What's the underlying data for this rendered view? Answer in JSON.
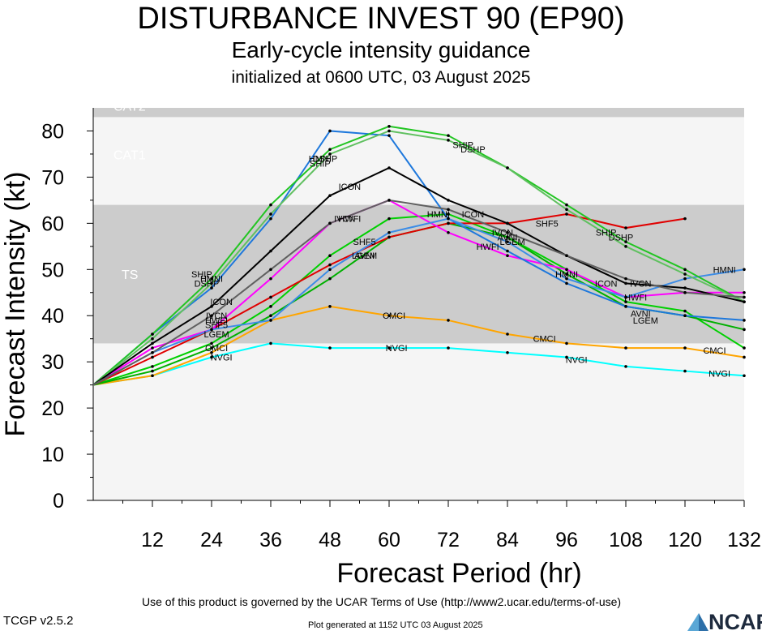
{
  "header": {
    "title": "DISTURBANCE INVEST 90 (EP90)",
    "subtitle": "Early-cycle intensity guidance",
    "initialized": "initialized at 0600 UTC, 03 August 2025"
  },
  "footer": {
    "terms": "Use of this product is governed by the UCAR Terms of Use (http://www2.ucar.edu/terms-of-use)",
    "version": "TCGP v2.5.2",
    "generated": "Plot generated at 1152 UTC   03 August 2025",
    "logo": "NCAR"
  },
  "chart_data": {
    "type": "line",
    "xlabel": "Forecast Period (hr)",
    "ylabel": "Forecast Intensity (kt)",
    "xlim": [
      0,
      132
    ],
    "ylim": [
      0,
      85
    ],
    "xticks": [
      12,
      24,
      36,
      48,
      60,
      72,
      84,
      96,
      108,
      120,
      132
    ],
    "yticks": [
      0,
      10,
      20,
      30,
      40,
      50,
      60,
      70,
      80
    ],
    "bands": [
      {
        "label": "TS",
        "from": 34,
        "to": 64,
        "color": "#cccccc"
      },
      {
        "label": "CAT1",
        "from": 64,
        "to": 83,
        "color": "#f5f5f5"
      },
      {
        "label": "CAT2",
        "from": 83,
        "to": 96,
        "color": "#cccccc"
      }
    ],
    "below_band_color": "#f5f5f5",
    "series": [
      {
        "name": "NVGI",
        "color": "#00ffff",
        "x": [
          0,
          12,
          24,
          36,
          48,
          60,
          72,
          84,
          96,
          108,
          120,
          132
        ],
        "values": [
          25,
          27,
          31,
          34,
          33,
          33,
          33,
          32,
          31,
          29,
          28,
          27
        ]
      },
      {
        "name": "CMCI",
        "color": "#ffa500",
        "x": [
          0,
          12,
          24,
          36,
          48,
          60,
          72,
          84,
          96,
          108,
          120,
          132
        ],
        "values": [
          25,
          27,
          32,
          39,
          42,
          40,
          39,
          36,
          34,
          33,
          33,
          31
        ]
      },
      {
        "name": "AVNI",
        "color": "#00d000",
        "x": [
          0,
          12,
          24,
          36,
          48,
          60,
          72,
          84,
          96,
          108,
          120,
          132
        ],
        "values": [
          25,
          29,
          34,
          42,
          53,
          61,
          62,
          57,
          50,
          43,
          41,
          33
        ]
      },
      {
        "name": "LGEM",
        "color": "#00b000",
        "x": [
          0,
          12,
          24,
          36,
          48,
          60,
          72,
          84,
          96,
          108,
          120,
          132
        ],
        "values": [
          25,
          28,
          33,
          40,
          48,
          57,
          60,
          57,
          49,
          42,
          40,
          37
        ]
      },
      {
        "name": "SHF5",
        "color": "#e00000",
        "x": [
          0,
          12,
          24,
          36,
          48,
          60,
          72,
          84,
          96,
          108,
          120
        ],
        "values": [
          25,
          31,
          37,
          44,
          51,
          57,
          60,
          60,
          62,
          59,
          61
        ]
      },
      {
        "name": "HWFI",
        "color": "#ff00ff",
        "x": [
          0,
          12,
          24,
          36,
          48,
          60,
          72,
          84,
          96,
          108,
          120,
          132
        ],
        "values": [
          25,
          33,
          37,
          48,
          60,
          65,
          58,
          53,
          50,
          44,
          45,
          45
        ]
      },
      {
        "name": "HMNI",
        "color": "#1e78dc",
        "x": [
          0,
          12,
          24,
          36,
          48,
          60,
          72,
          84,
          96,
          108,
          120,
          132
        ],
        "values": [
          25,
          36,
          46,
          61,
          80,
          79,
          61,
          54,
          47,
          42,
          40,
          39
        ]
      },
      {
        "name": "HMNI",
        "color": "#3c8ce6",
        "x": [
          0,
          12,
          24,
          36,
          48,
          60,
          72,
          84,
          96,
          108,
          120,
          132
        ],
        "values": [
          25,
          32,
          37,
          39,
          50,
          58,
          61,
          56,
          48,
          44,
          48,
          50
        ]
      },
      {
        "name": "SHIP",
        "color": "#22c522",
        "x": [
          0,
          12,
          24,
          36,
          48,
          60,
          72,
          84,
          96,
          108,
          120,
          132
        ],
        "values": [
          25,
          36,
          48,
          64,
          76,
          81,
          79,
          72,
          64,
          56,
          50,
          43
        ]
      },
      {
        "name": "DSHP",
        "color": "#60c060",
        "x": [
          0,
          12,
          24,
          36,
          48,
          60,
          72,
          84,
          96,
          108,
          120,
          132
        ],
        "values": [
          25,
          35,
          47,
          62,
          75,
          80,
          78,
          72,
          63,
          55,
          49,
          43
        ]
      },
      {
        "name": "ICON",
        "color": "#000000",
        "x": [
          0,
          12,
          24,
          36,
          48,
          60,
          72,
          84,
          96,
          108,
          120,
          132
        ],
        "values": [
          25,
          34,
          42,
          54,
          66,
          72,
          65,
          60,
          53,
          47,
          46,
          43
        ]
      },
      {
        "name": "IVCN",
        "color": "#606060",
        "x": [
          0,
          12,
          24,
          36,
          48,
          60,
          72,
          84,
          96,
          108,
          120,
          132
        ],
        "values": [
          25,
          32,
          40,
          50,
          60,
          65,
          63,
          58,
          53,
          48,
          45,
          44
        ]
      }
    ],
    "labels": [
      {
        "text": "NVGI",
        "x": 26,
        "y": 31
      },
      {
        "text": "NVGI",
        "x": 61.5,
        "y": 33
      },
      {
        "text": "NVGI",
        "x": 98,
        "y": 30.5
      },
      {
        "text": "NVGI",
        "x": 127,
        "y": 27.5
      },
      {
        "text": "CMCI",
        "x": 25,
        "y": 33
      },
      {
        "text": "CMCI",
        "x": 61,
        "y": 40
      },
      {
        "text": "CMCI",
        "x": 91.5,
        "y": 35
      },
      {
        "text": "CMCI",
        "x": 126,
        "y": 32.5
      },
      {
        "text": "LGEM",
        "x": 25,
        "y": 36
      },
      {
        "text": "LGEM",
        "x": 55,
        "y": 53
      },
      {
        "text": "LGEM",
        "x": 85,
        "y": 56
      },
      {
        "text": "LGEM",
        "x": 112,
        "y": 39
      },
      {
        "text": "AVNI",
        "x": 55,
        "y": 53
      },
      {
        "text": "AVNI",
        "x": 84,
        "y": 57
      },
      {
        "text": "AVNI",
        "x": 111,
        "y": 40.5
      },
      {
        "text": "SHF5",
        "x": 25,
        "y": 38
      },
      {
        "text": "SHF5",
        "x": 55,
        "y": 56
      },
      {
        "text": "SHF5",
        "x": 92,
        "y": 60
      },
      {
        "text": "HWFI",
        "x": 25,
        "y": 39
      },
      {
        "text": "HWFI",
        "x": 52,
        "y": 61
      },
      {
        "text": "HWFI",
        "x": 80,
        "y": 55
      },
      {
        "text": "HWFI",
        "x": 110,
        "y": 44
      },
      {
        "text": "ICON",
        "x": 26,
        "y": 43
      },
      {
        "text": "ICON",
        "x": 52,
        "y": 68
      },
      {
        "text": "ICON",
        "x": 77,
        "y": 62
      },
      {
        "text": "ICON",
        "x": 104,
        "y": 47
      },
      {
        "text": "IVCN",
        "x": 25,
        "y": 40
      },
      {
        "text": "IVCN",
        "x": 51,
        "y": 61
      },
      {
        "text": "IVCN",
        "x": 83,
        "y": 58
      },
      {
        "text": "IVCN",
        "x": 111,
        "y": 47
      },
      {
        "text": "HMNI",
        "x": 24,
        "y": 48
      },
      {
        "text": "HMNI",
        "x": 46,
        "y": 74
      },
      {
        "text": "HMNI",
        "x": 70,
        "y": 62
      },
      {
        "text": "HMNI",
        "x": 96,
        "y": 49
      },
      {
        "text": "HMNI",
        "x": 128,
        "y": 50
      },
      {
        "text": "SHIP",
        "x": 22,
        "y": 49
      },
      {
        "text": "SHIP",
        "x": 46,
        "y": 73
      },
      {
        "text": "SHIP",
        "x": 75,
        "y": 77
      },
      {
        "text": "SHIP",
        "x": 104,
        "y": 58
      },
      {
        "text": "DSHP",
        "x": 23,
        "y": 47
      },
      {
        "text": "DSHP",
        "x": 47,
        "y": 74
      },
      {
        "text": "DSHP",
        "x": 77,
        "y": 76
      },
      {
        "text": "DSHP",
        "x": 107,
        "y": 57
      }
    ]
  }
}
